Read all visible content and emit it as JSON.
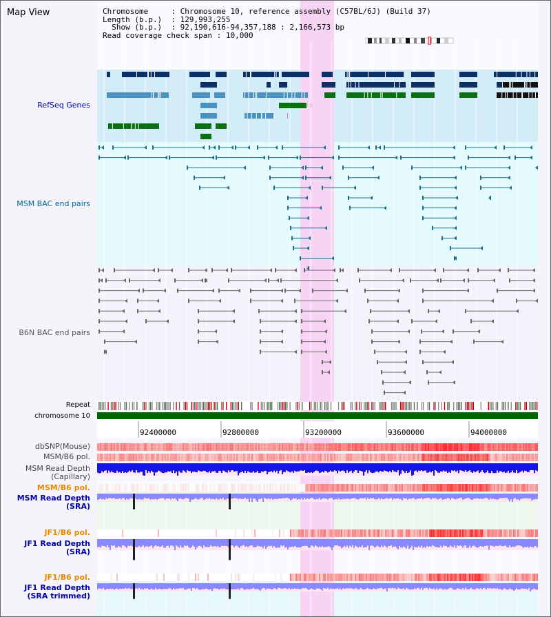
{
  "view_title": "Map View",
  "info": {
    "chromosome_key": "Chromosome",
    "chromosome_val": "Chromosome 10, reference assembly (C57BL/6J) (Build 37)",
    "length_key": "Length (b.p.)",
    "length_val": "129,993,255",
    "show_key": "Show (b.p.)",
    "show_val": "92,190,616-94,357,188 : 2,166,573 bp",
    "span_key": "Read coverage check span",
    "span_val": "10,000"
  },
  "track_labels": {
    "refseq": "RefSeq Genes",
    "msm_bac": "MSM BAC end pairs",
    "b6n_bac": "B6N BAC end pairs",
    "repeat": "Repeat",
    "chromosome": "chromosome 10",
    "dbsnp": "dbSNP(Mouse)",
    "msm_b6_pol": "MSM/B6 pol.",
    "msm_depth_cap_1": "MSM Read Depth",
    "msm_depth_cap_2": "(Capillary)",
    "msm_b6_pol_2": "MSM/B6 pol.",
    "msm_depth_sra_1": "MSM Read Depth",
    "msm_depth_sra_2": "(SRA)",
    "jf1_b6_pol": "JF1/B6 pol.",
    "jf1_depth_sra_1": "JF1 Read Depth",
    "jf1_depth_sra_2": "(SRA)",
    "jf1_b6_pol_2": "JF1/B6 pol.",
    "jf1_depth_trim_1": "JF1 Read Depth",
    "jf1_depth_trim_2": "(SRA trimmed)"
  },
  "axis_ticks": [
    "92400000",
    "92800000",
    "93200000",
    "93600000",
    "94000000"
  ],
  "colors": {
    "refseq_bg": "#d2ecf8",
    "bac_bg": "#e4fafc",
    "highlight": "#f8d4f4",
    "gene_dark": "#0c2f66",
    "gene_mid": "#4a92c2",
    "gene_green": "#0a7010",
    "msm_line": "#1a6e8e",
    "b6n_line": "#666666",
    "depth_blue": "#1414e6",
    "depth_light": "#8888ff",
    "label_blue": "#0000aa",
    "label_orange": "#e68a00",
    "label_teal": "#006699"
  }
}
